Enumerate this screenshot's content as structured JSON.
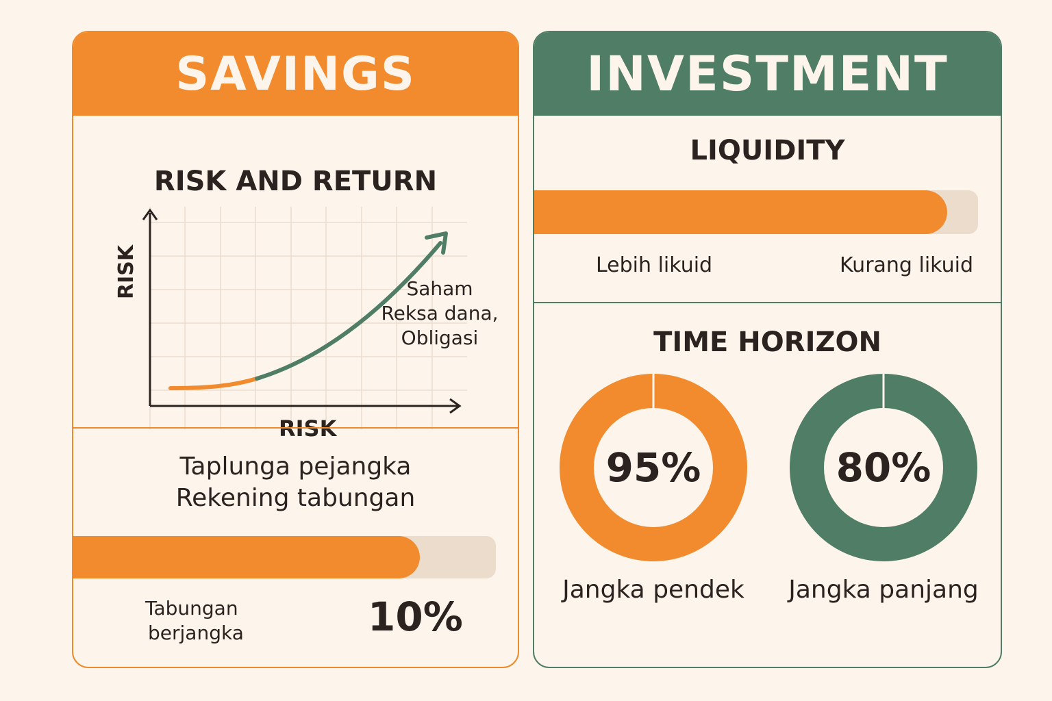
{
  "savings": {
    "title": "SAVINGS",
    "risk_return": {
      "title": "RISK AND RETURN",
      "y_axis_label": "RISK",
      "x_axis_label": "RISK",
      "annotation_lines": [
        "Saham",
        "Reksa dana,",
        "Obligasi"
      ],
      "curve_low_color": "#f28b2e",
      "curve_high_color": "#4f7d66"
    },
    "products": {
      "line1": "Taplunga pejangka",
      "line2": "Rekening tabungan"
    },
    "bar": {
      "percent": 82,
      "label_line1": "Tabungan",
      "label_line2": "berjangka",
      "value_text": "10%"
    }
  },
  "investment": {
    "title": "INVESTMENT",
    "liquidity": {
      "title": "LIQUIDITY",
      "percent": 93,
      "left_label": "Lebih likuid",
      "right_label": "Kurang likuid"
    },
    "time_horizon": {
      "title": "TIME HORIZON",
      "donuts": [
        {
          "value_text": "95%",
          "label": "Jangka pendek",
          "color": "#f28b2e"
        },
        {
          "value_text": "80%",
          "label": "Jangka panjang",
          "color": "#4f7d66"
        }
      ]
    }
  },
  "colors": {
    "orange": "#f28b2e",
    "green": "#4f7d66",
    "background": "#fdf5ec",
    "track": "#ecdccb"
  }
}
